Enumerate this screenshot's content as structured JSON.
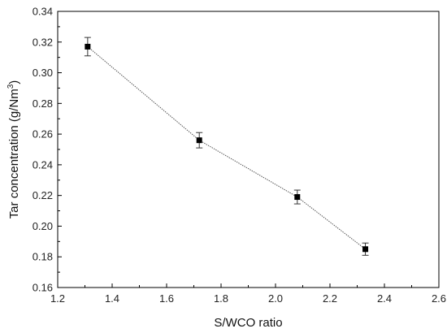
{
  "chart_data": {
    "type": "scatter",
    "title": "",
    "xlabel": "S/WCO ratio",
    "ylabel_main": "Tar concentration (g/Nm",
    "ylabel_sup": "3",
    "ylabel_close": ")",
    "xlim": [
      1.2,
      2.6
    ],
    "ylim": [
      0.16,
      0.34
    ],
    "x_ticks": [
      "1.2",
      "1.4",
      "1.6",
      "1.8",
      "2.0",
      "2.2",
      "2.4",
      "2.6"
    ],
    "y_ticks": [
      "0.16",
      "0.18",
      "0.20",
      "0.22",
      "0.24",
      "0.26",
      "0.28",
      "0.30",
      "0.32",
      "0.34"
    ],
    "grid": false,
    "legend": "none",
    "series": [
      {
        "x": [
          1.31,
          1.72,
          2.08,
          2.33
        ],
        "y": [
          0.317,
          0.256,
          0.219,
          0.185
        ],
        "err": [
          0.006,
          0.005,
          0.0045,
          0.004
        ],
        "marker": "square",
        "line_style": "dotted",
        "color": "#000000"
      }
    ]
  }
}
